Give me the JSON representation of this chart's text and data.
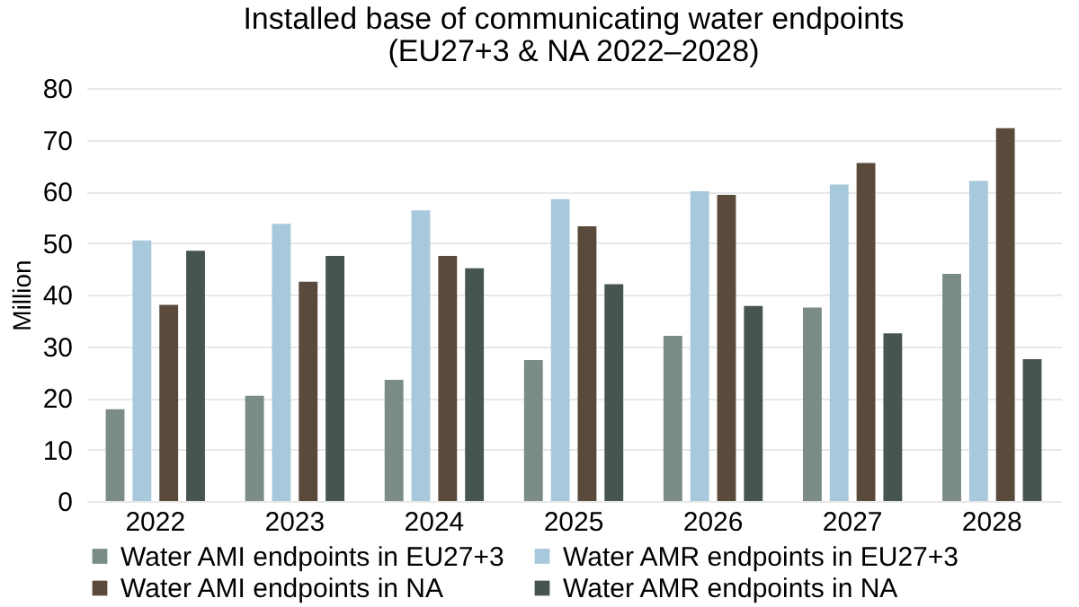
{
  "chart_data": {
    "type": "bar",
    "title": "Installed base of communicating water endpoints",
    "subtitle": "(EU27+3 & NA 2022–2028)",
    "ylabel": "Million",
    "categories": [
      "2022",
      "2023",
      "2024",
      "2025",
      "2026",
      "2027",
      "2028"
    ],
    "series": [
      {
        "name": "Water AMI endpoints in EU27+3",
        "color": "#7a8c85",
        "values": [
          17.8,
          20.4,
          23.5,
          27.3,
          32,
          37.5,
          44
        ]
      },
      {
        "name": "Water AMR endpoints in EU27+3",
        "color": "#a8c8dc",
        "values": [
          50.5,
          53.7,
          56.3,
          58.5,
          60,
          61.3,
          62
        ]
      },
      {
        "name": "Water AMI endpoints in NA",
        "color": "#5a4a3c",
        "values": [
          38,
          42.5,
          47.5,
          53.2,
          59.3,
          65.5,
          72.2
        ]
      },
      {
        "name": "Water AMR endpoints in NA",
        "color": "#46554f",
        "values": [
          48.5,
          47.5,
          45.1,
          42,
          37.8,
          32.5,
          27.5
        ]
      }
    ],
    "ylim": [
      0,
      80
    ],
    "yticks": [
      0,
      10,
      20,
      30,
      40,
      50,
      60,
      70,
      80
    ],
    "grid": "y",
    "legend": "bottom"
  }
}
